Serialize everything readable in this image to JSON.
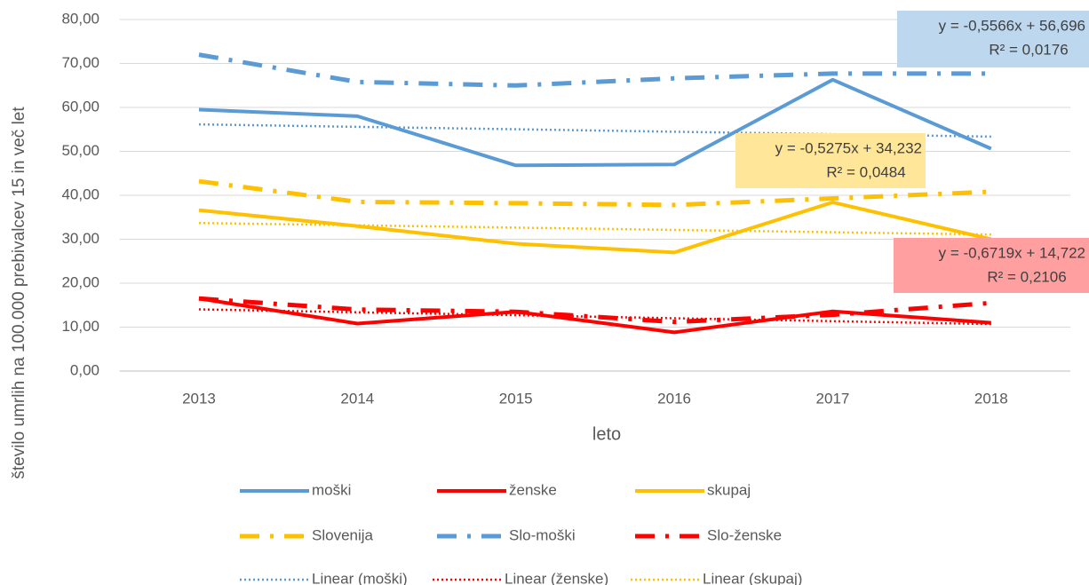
{
  "chart_data": {
    "type": "line",
    "x_label": "leto",
    "y_label": "število umrlih na 100.000 prebivalcev 15 in več let",
    "categories": [
      "2013",
      "2014",
      "2015",
      "2016",
      "2017",
      "2018"
    ],
    "ylim": [
      0,
      80
    ],
    "yticks": [
      {
        "value": 0,
        "label": "0,00"
      },
      {
        "value": 10,
        "label": "10,00"
      },
      {
        "value": 20,
        "label": "20,00"
      },
      {
        "value": 30,
        "label": "30,00"
      },
      {
        "value": 40,
        "label": "40,00"
      },
      {
        "value": 50,
        "label": "50,00"
      },
      {
        "value": 60,
        "label": "60,00"
      },
      {
        "value": 70,
        "label": "70,00"
      },
      {
        "value": 80,
        "label": "80,00"
      }
    ],
    "grid": true,
    "legend": "bottom",
    "series": [
      {
        "name": "moški",
        "color": "#5b9bd5",
        "dash": "solid",
        "values": [
          59.5,
          58.0,
          46.8,
          47.0,
          66.3,
          50.6
        ]
      },
      {
        "name": "ženske",
        "color": "#ff0000",
        "dash": "solid",
        "values": [
          16.5,
          10.8,
          13.5,
          8.8,
          13.6,
          11.0
        ]
      },
      {
        "name": "skupaj",
        "color": "#ffc000",
        "dash": "solid",
        "values": [
          36.6,
          33.0,
          29.0,
          27.0,
          38.4,
          30.0
        ]
      },
      {
        "name": "Slovenija",
        "color": "#ffc000",
        "dash": "dashdot",
        "values": [
          43.2,
          38.5,
          38.2,
          37.8,
          39.3,
          40.8
        ]
      },
      {
        "name": "Slo-moški",
        "color": "#5b9bd5",
        "dash": "dashdot",
        "values": [
          72.0,
          65.8,
          65.0,
          66.6,
          67.7,
          67.7
        ]
      },
      {
        "name": "Slo-ženske",
        "color": "#ff0000",
        "dash": "dashdot",
        "values": [
          16.5,
          14.0,
          13.5,
          11.2,
          12.8,
          15.5
        ]
      },
      {
        "name": "Linear (moški)",
        "color": "#5b9bd5",
        "dash": "dot",
        "values": [
          56.14,
          55.58,
          55.03,
          54.47,
          53.91,
          53.36
        ]
      },
      {
        "name": "Linear (ženske)",
        "color": "#ff0000",
        "dash": "dot",
        "values": [
          14.05,
          13.38,
          12.71,
          12.03,
          11.36,
          10.69
        ]
      },
      {
        "name": "Linear (skupaj)",
        "color": "#ffc000",
        "dash": "dot",
        "values": [
          33.7,
          33.18,
          32.65,
          32.12,
          31.6,
          31.07
        ]
      }
    ],
    "annotations": [
      {
        "equation": "y = -0,5566x + 56,696",
        "r2": "R² = 0,0176",
        "color": "#bdd7ee"
      },
      {
        "equation": "y = -0,5275x + 34,232",
        "r2": "R² = 0,0484",
        "color": "#ffe699"
      },
      {
        "equation": "y = -0,6719x + 14,722",
        "r2": "R² = 0,2106",
        "color": "#ff9f9f"
      }
    ]
  }
}
